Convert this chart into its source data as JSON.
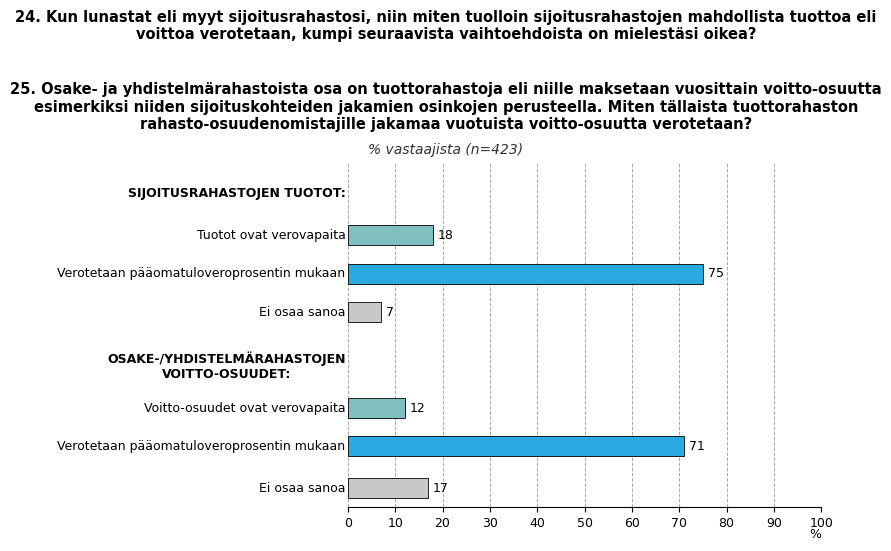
{
  "title_q24_line1": "24. Kun lunastat eli myyt sijoitusrahastosi, niin miten tuolloin sijoitusrahastojen mahdollista tuottoa eli",
  "title_q24_line2": "voittoa verotetaan, kumpi seuraavista vaihtoehdoista on mielestäsi oikea?",
  "title_q25_line1": "25. Osake- ja yhdistelmärahastoista osa on tuottorahastoja eli niille maksetaan vuosittain voitto-osuutta",
  "title_q25_line2": "esimerkiksi niiden sijoituskohteiden jakamien osinkojen perusteella. Miten tällaista tuottorahaston",
  "title_q25_line3": "rahasto-osuudenomistajille jakamaa vuotuista voitto-osuutta verotetaan?",
  "subtitle": "% vastaajista (n=423)",
  "xlim": [
    0,
    100
  ],
  "xticks": [
    0,
    10,
    20,
    30,
    40,
    50,
    60,
    70,
    80,
    90,
    100
  ],
  "categories": [
    "SIJOITUSRAHASTOJEN TUOTOT:",
    "Tuotot ovat verovapaita",
    "Verotetaan pääomatuloveroprosentin mukaan",
    "Ei osaa sanoa",
    "OSAKE-/YHDISTELMÄRAHASTOJEN\nVOITTO-OSUUDET:",
    "Voitto-osuudet ovat verovapaita",
    "Verotetaan pääomatuloveroprosentin mukaan",
    "Ei osaa sanoa"
  ],
  "values": [
    null,
    18,
    75,
    7,
    null,
    12,
    71,
    17
  ],
  "bar_colors": [
    null,
    "#7fbfbf",
    "#29abe2",
    "#c8c8c8",
    null,
    "#7fbfbf",
    "#29abe2",
    "#c8c8c8"
  ],
  "header_indices": [
    0,
    4
  ],
  "background_color": "#ffffff",
  "bar_height": 0.52,
  "value_label_fontsize": 9,
  "category_fontsize": 9,
  "subtitle_fontsize": 10,
  "title_fontsize": 10.5
}
